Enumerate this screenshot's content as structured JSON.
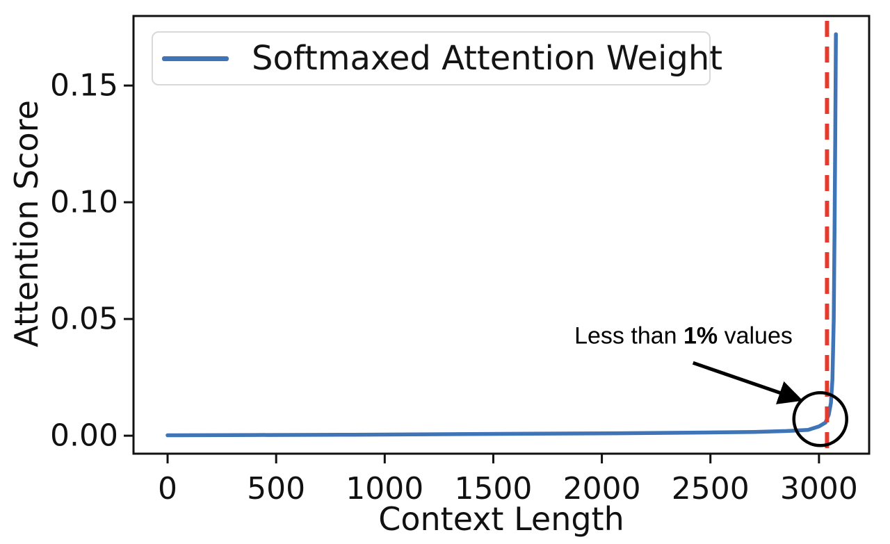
{
  "chart_data": {
    "type": "line",
    "title": "",
    "xlabel": "Context Length",
    "ylabel": "Attention Score",
    "xlim": [
      -157,
      3231
    ],
    "ylim": [
      -0.0077,
      0.1798
    ],
    "grid": false,
    "legend": {
      "position": "upper left",
      "label": "Softmaxed Attention Weight"
    },
    "xticks": {
      "values": [
        0,
        500,
        1000,
        1500,
        2000,
        2500,
        3000
      ],
      "labels": [
        "0",
        "500",
        "1000",
        "1500",
        "2000",
        "2500",
        "3000"
      ]
    },
    "yticks": {
      "values": [
        0.0,
        0.05,
        0.1,
        0.15
      ],
      "labels": [
        "0.00",
        "0.05",
        "0.10",
        "0.15"
      ]
    },
    "series": [
      {
        "name": "Softmaxed Attention Weight",
        "color": "#3F74B6",
        "x": [
          0,
          400,
          800,
          1200,
          1600,
          2000,
          2400,
          2700,
          2850,
          2950,
          3000,
          3030,
          3045,
          3055,
          3062,
          3068,
          3072,
          3075,
          3078
        ],
        "y": [
          0.0002,
          0.0003,
          0.0004,
          0.0006,
          0.0008,
          0.001,
          0.0013,
          0.0016,
          0.002,
          0.0025,
          0.004,
          0.0056,
          0.009,
          0.014,
          0.024,
          0.05,
          0.09,
          0.13,
          0.172
        ]
      }
    ],
    "vline": {
      "x": 3037,
      "color": "#E8392B",
      "style": "dashed"
    },
    "annotations": {
      "note": {
        "prefix": "Less than ",
        "bold": "1%",
        "suffix": " values",
        "x": 2376,
        "y": 0.0426
      },
      "arrow": {
        "x1": 2420,
        "y1": 0.0312,
        "x2": 2910,
        "y2": 0.0155,
        "color": "#000000"
      },
      "circle": {
        "x": 3006,
        "y": 0.0071,
        "radius_px": 38,
        "color": "#000000"
      }
    },
    "colors": {
      "line": "#3F74B6",
      "vline": "#E8392B",
      "axes": "#111111",
      "text": "#111111",
      "legend_border": "#D9D9D9"
    }
  }
}
